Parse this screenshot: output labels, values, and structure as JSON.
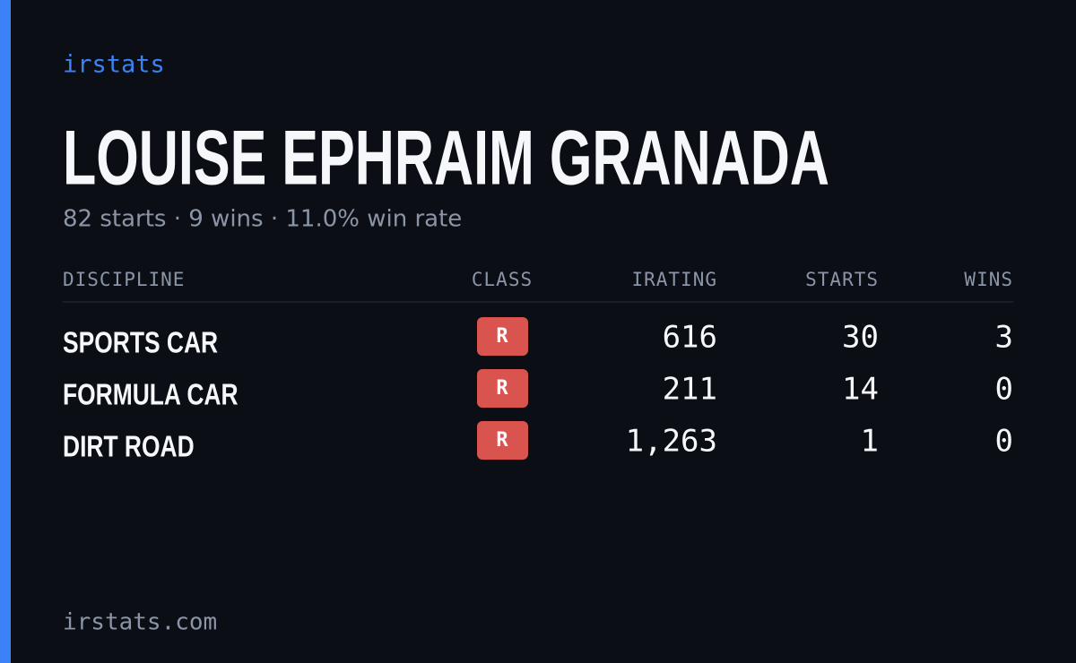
{
  "brand": "irstats",
  "title": "LOUISE EPHRAIM GRANADA",
  "subtitle": "82 starts · 9 wins · 11.0% win rate",
  "table": {
    "headers": [
      "DISCIPLINE",
      "CLASS",
      "IRATING",
      "STARTS",
      "WINS"
    ],
    "rows": [
      [
        "SPORTS CAR",
        "R",
        "616",
        "30",
        "3"
      ],
      [
        "FORMULA CAR",
        "R",
        "211",
        "14",
        "0"
      ],
      [
        "DIRT ROAD",
        "R",
        "1,263",
        "1",
        "0"
      ]
    ]
  },
  "footer": "irstats.com"
}
